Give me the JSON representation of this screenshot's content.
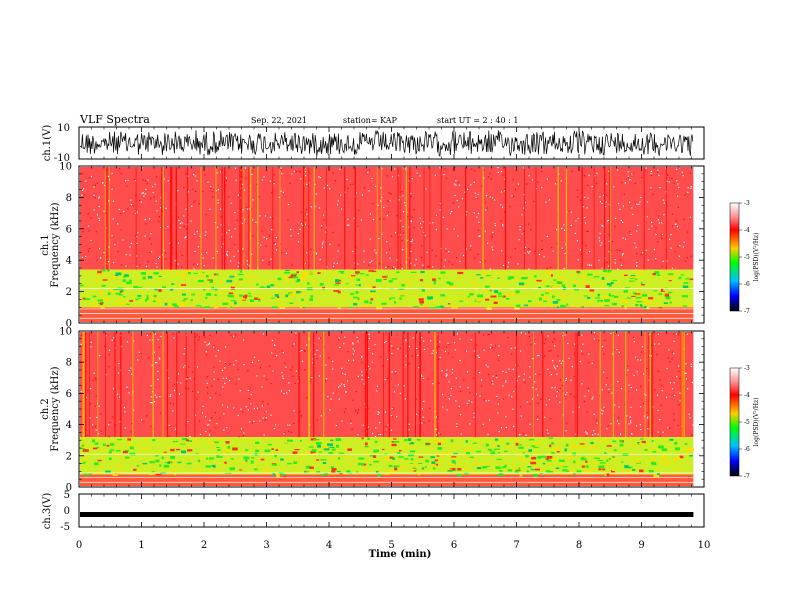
{
  "header": {
    "title": "VLF Spectra",
    "date": "Sep. 22, 2021",
    "station": "station= KAP",
    "start": "start  UT =   2  : 40 : 1"
  },
  "chart_data": [
    {
      "id": "ch1-waveform",
      "type": "line",
      "ylabel": "ch.1(V)",
      "ylim": [
        -10,
        10
      ],
      "yticks": [
        "10",
        "-10"
      ],
      "xlim": [
        0,
        10
      ],
      "description_series": "dense black oscillation filling most of the range"
    },
    {
      "id": "ch1-spectrogram",
      "type": "heatmap",
      "ylabel": "ch.1\nFrequency (kHz)",
      "ylabel_lines": [
        "ch.1",
        "Frequency  (kHz)"
      ],
      "yticks": [
        "0",
        "2",
        "4",
        "6",
        "8",
        "10"
      ],
      "ylim": [
        0,
        10
      ],
      "xlim": [
        0,
        9.83
      ],
      "colorbar": {
        "label": "log(PSD)(V²/Hz)",
        "ticks": [
          "-3",
          "-4",
          "-5",
          "-6",
          "-7"
        ],
        "range": [
          -7,
          -3
        ]
      },
      "bands_khz": {
        "strong_lower_edge": 3.4,
        "midlevel_band": [
          1.0,
          3.4
        ],
        "narrowband_lines": [
          0.3,
          0.6,
          0.9,
          2.2
        ]
      }
    },
    {
      "id": "ch2-spectrogram",
      "type": "heatmap",
      "ylabel_lines": [
        "ch.2",
        "Frequency  (kHz)"
      ],
      "yticks": [
        "0",
        "2",
        "4",
        "6",
        "8",
        "10"
      ],
      "ylim": [
        0,
        10
      ],
      "xlim": [
        0,
        9.83
      ],
      "colorbar": {
        "label": "log(PSD)(V²/Hz)",
        "ticks": [
          "-3",
          "-4",
          "-5",
          "-6",
          "-7"
        ],
        "range": [
          -7,
          -3
        ]
      },
      "bands_khz": {
        "strong_lower_edge": 3.2,
        "midlevel_band": [
          0.8,
          3.2
        ],
        "narrowband_lines": [
          0.3,
          0.6,
          0.9,
          2.1
        ]
      }
    },
    {
      "id": "ch3-waveform",
      "type": "line",
      "ylabel": "ch.3(V)",
      "ylim": [
        -5,
        5
      ],
      "yticks": [
        "5",
        "0",
        "-5"
      ],
      "xlim": [
        0,
        10
      ],
      "level": -1.2
    }
  ],
  "xaxis": {
    "label": "Time  (min)",
    "ticks": [
      "0",
      "1",
      "2",
      "3",
      "4",
      "5",
      "6",
      "7",
      "8",
      "9",
      "10"
    ]
  },
  "colors": {
    "high": "#ff0000",
    "mid": "#00ff00",
    "low": "#0000ff",
    "bg": "#ffffff"
  }
}
